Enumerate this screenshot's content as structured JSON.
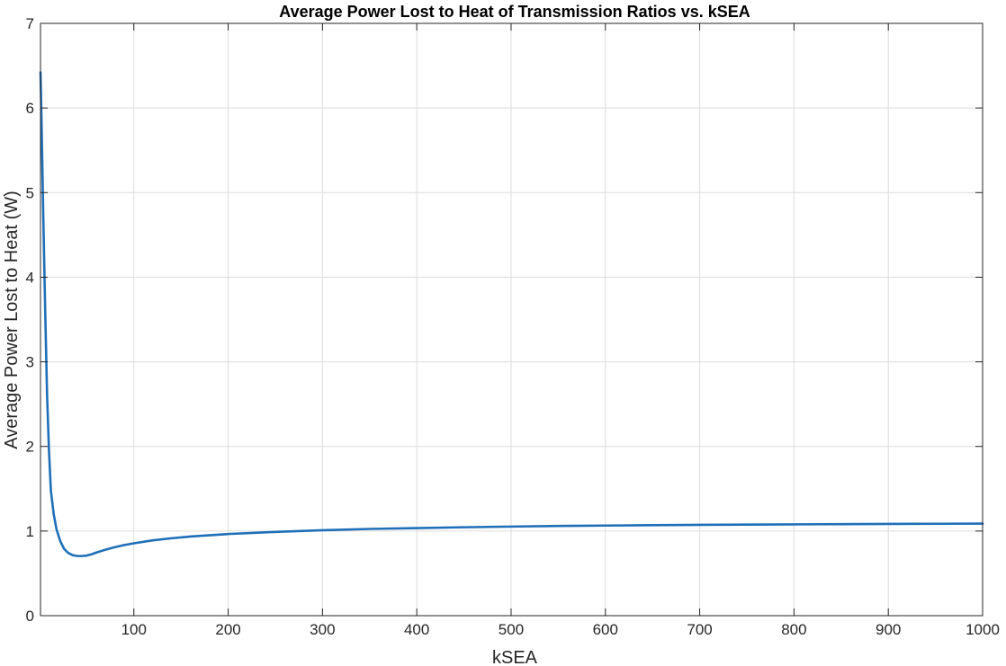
{
  "chart_data": {
    "type": "line",
    "title": "Average Power Lost to Heat of Transmission Ratios vs. kSEA",
    "xlabel": "kSEA",
    "ylabel": "Average Power Lost to Heat (W)",
    "xlim": [
      1,
      1000
    ],
    "ylim": [
      0,
      7
    ],
    "xticks": [
      100,
      200,
      300,
      400,
      500,
      600,
      700,
      800,
      900,
      1000
    ],
    "yticks": [
      0,
      1,
      2,
      3,
      4,
      5,
      6,
      7
    ],
    "grid": true,
    "series": [
      {
        "color": "#1f6fb8",
        "x": [
          1,
          2,
          4,
          6,
          8,
          10,
          12,
          15,
          18,
          22,
          26,
          30,
          35,
          40,
          45,
          50,
          55,
          60,
          70,
          80,
          90,
          100,
          120,
          140,
          160,
          180,
          200,
          250,
          300,
          350,
          400,
          450,
          500,
          550,
          600,
          650,
          700,
          750,
          800,
          850,
          900,
          950,
          1000
        ],
        "y": [
          6.42,
          5.9,
          4.7,
          3.6,
          2.6,
          1.95,
          1.48,
          1.2,
          1.02,
          0.88,
          0.79,
          0.745,
          0.715,
          0.705,
          0.705,
          0.71,
          0.725,
          0.745,
          0.78,
          0.81,
          0.835,
          0.855,
          0.89,
          0.915,
          0.935,
          0.95,
          0.965,
          0.99,
          1.01,
          1.025,
          1.035,
          1.045,
          1.053,
          1.06,
          1.065,
          1.07,
          1.073,
          1.076,
          1.079,
          1.082,
          1.084,
          1.086,
          1.088
        ]
      }
    ]
  }
}
